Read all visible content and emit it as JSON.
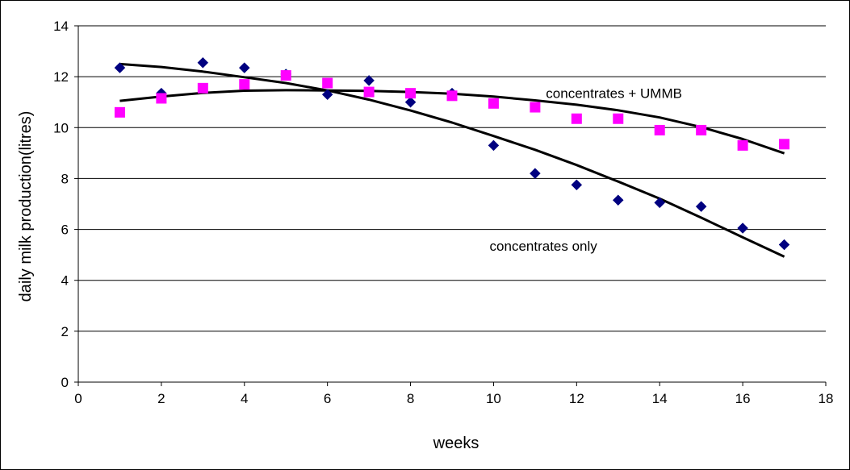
{
  "chart_data": {
    "type": "scatter",
    "title": "",
    "xlabel": "weeks",
    "ylabel": "daily milk production(litres)",
    "xlim": [
      0,
      18
    ],
    "ylim": [
      0,
      14
    ],
    "x_ticks": [
      "0",
      "2",
      "4",
      "6",
      "8",
      "10",
      "12",
      "14",
      "16",
      "18"
    ],
    "y_ticks": [
      "0",
      "2",
      "4",
      "6",
      "8",
      "10",
      "12",
      "14"
    ],
    "grid": "horizontal",
    "legend": "none",
    "series": [
      {
        "name": "concentrates only",
        "marker": "diamond",
        "color": "#000080",
        "x": [
          1,
          2,
          3,
          4,
          5,
          6,
          7,
          8,
          9,
          10,
          11,
          12,
          13,
          14,
          15,
          16,
          17
        ],
        "y": [
          12.35,
          11.35,
          12.55,
          12.35,
          12.1,
          11.3,
          11.85,
          11.0,
          11.35,
          9.3,
          8.2,
          7.75,
          7.15,
          7.05,
          6.9,
          6.05,
          5.4
        ],
        "trend": [
          12.5,
          12.38,
          12.2,
          11.98,
          11.75,
          11.46,
          11.1,
          10.67,
          10.2,
          9.67,
          9.13,
          8.53,
          7.88,
          7.21,
          6.46,
          5.69,
          4.93
        ]
      },
      {
        "name": "concentrates + UMMB",
        "marker": "square",
        "color": "#ff00ff",
        "x": [
          1,
          2,
          3,
          4,
          5,
          6,
          7,
          8,
          9,
          10,
          11,
          12,
          13,
          14,
          15,
          16,
          17
        ],
        "y": [
          10.6,
          11.15,
          11.55,
          11.7,
          12.05,
          11.75,
          11.4,
          11.35,
          11.25,
          10.95,
          10.8,
          10.35,
          10.35,
          9.9,
          9.9,
          9.3,
          9.35
        ],
        "trend": [
          11.05,
          11.22,
          11.36,
          11.45,
          11.47,
          11.46,
          11.44,
          11.4,
          11.33,
          11.22,
          11.07,
          10.9,
          10.68,
          10.4,
          10.02,
          9.55,
          8.99
        ]
      }
    ],
    "annotations": [
      {
        "text": "concentrates + UMMB",
        "x": 12.9,
        "y": 11.35
      },
      {
        "text": "concentrates only",
        "x": 11.2,
        "y": 5.35
      }
    ]
  }
}
